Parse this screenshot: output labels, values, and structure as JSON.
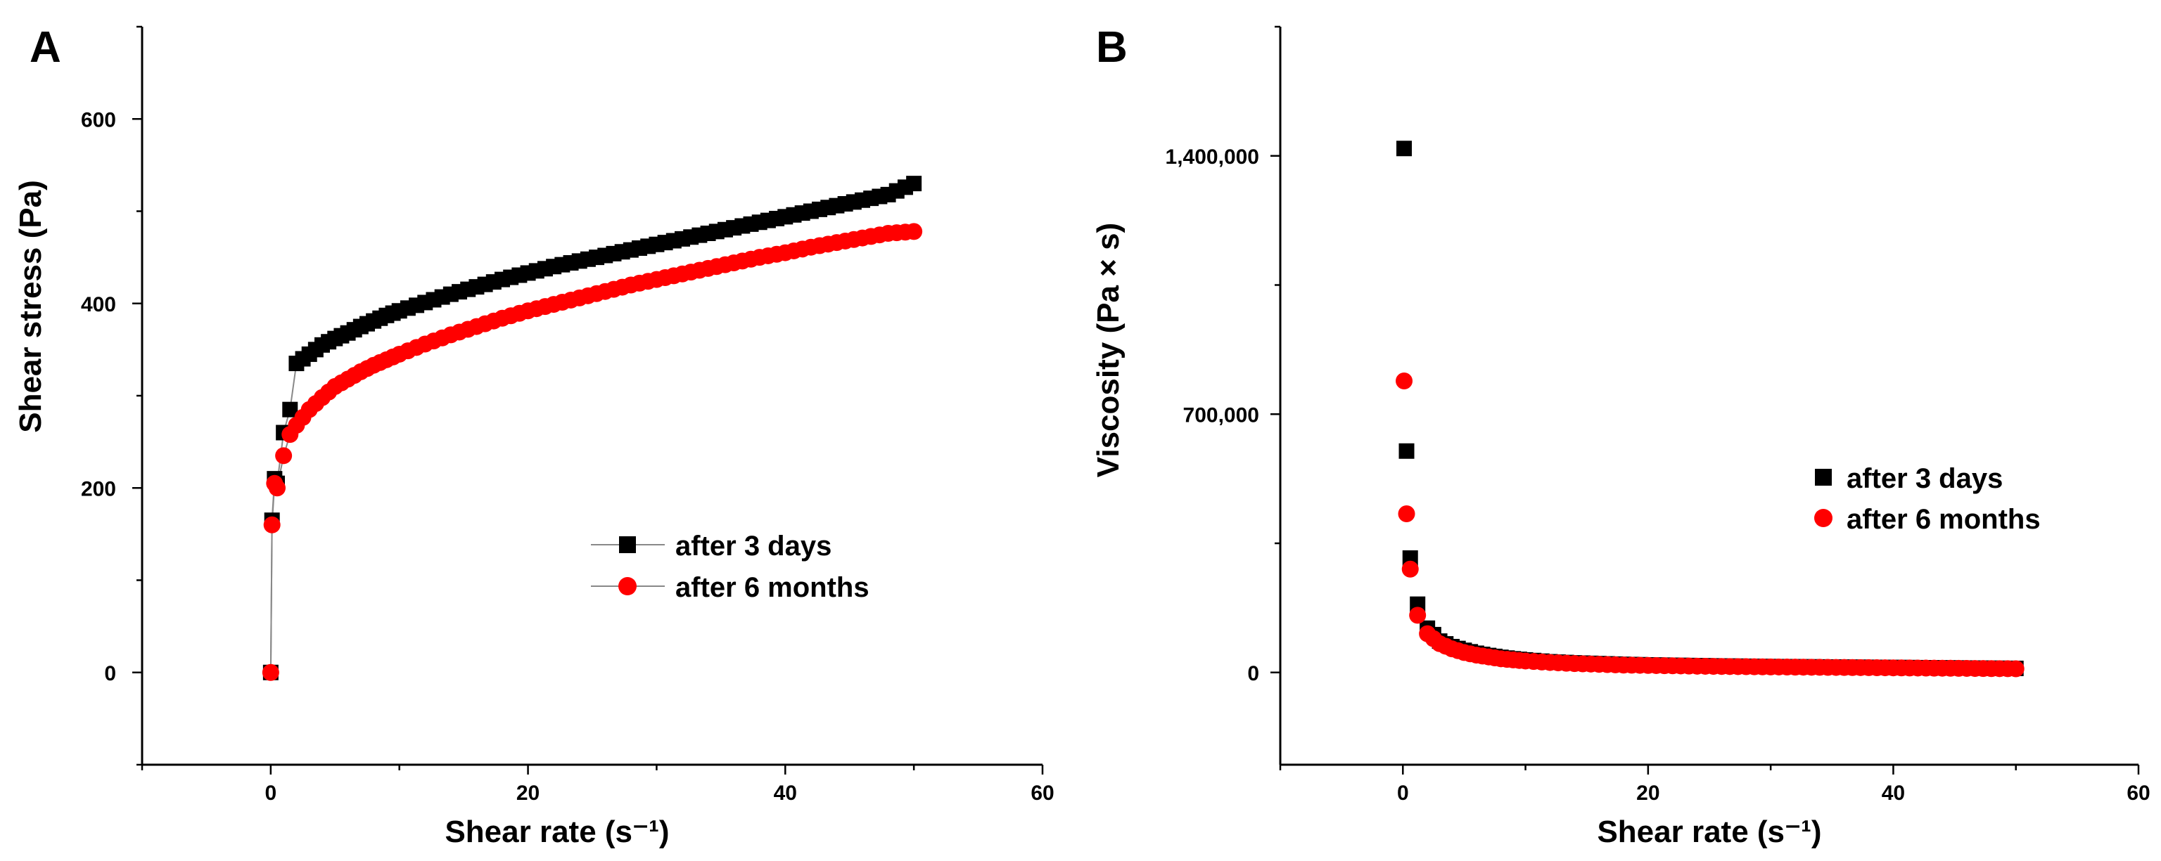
{
  "chart_data": [
    {
      "panel": "A",
      "type": "line",
      "title": "",
      "xlabel": "Shear rate (s⁻¹)",
      "ylabel": "Shear stress (Pa)",
      "xlim": [
        -10,
        60
      ],
      "ylim": [
        -100,
        700
      ],
      "xticks": [
        0,
        20,
        40,
        60
      ],
      "yticks": [
        0,
        200,
        400,
        600
      ],
      "xtick_labels": [
        "0",
        "20",
        "40",
        "60"
      ],
      "ytick_labels": [
        "0",
        "200",
        "400",
        "600"
      ],
      "legend_position": "center-right",
      "series": [
        {
          "name": "after 3 days",
          "marker": "square",
          "color": "#000000",
          "line_color": "#888888",
          "x": [
            0,
            0.1,
            0.3,
            0.5,
            1,
            1.5,
            2,
            3,
            4,
            5,
            6,
            7,
            8,
            9,
            10,
            12,
            14,
            16,
            18,
            20,
            22,
            24,
            26,
            28,
            30,
            32,
            34,
            36,
            38,
            40,
            42,
            44,
            46,
            48,
            50
          ],
          "y": [
            0,
            165,
            210,
            205,
            260,
            285,
            335,
            345,
            355,
            362,
            368,
            375,
            381,
            387,
            392,
            401,
            410,
            418,
            426,
            433,
            440,
            446,
            452,
            458,
            464,
            470,
            476,
            482,
            488,
            494,
            500,
            506,
            512,
            518,
            530
          ]
        },
        {
          "name": "after 6 months",
          "marker": "circle",
          "color": "#ff0000",
          "line_color": "#888888",
          "x": [
            0,
            0.1,
            0.3,
            0.5,
            1,
            1.5,
            2,
            3,
            4,
            5,
            6,
            7,
            8,
            9,
            10,
            12,
            14,
            16,
            18,
            20,
            22,
            24,
            26,
            28,
            30,
            32,
            34,
            36,
            38,
            40,
            42,
            44,
            46,
            48,
            50
          ],
          "y": [
            0,
            160,
            205,
            200,
            235,
            258,
            268,
            285,
            298,
            310,
            318,
            326,
            333,
            339,
            345,
            356,
            366,
            375,
            384,
            392,
            399,
            406,
            413,
            420,
            426,
            432,
            438,
            444,
            450,
            455,
            461,
            466,
            471,
            476,
            478
          ]
        }
      ]
    },
    {
      "panel": "B",
      "type": "scatter",
      "title": "",
      "xlabel": "Shear rate (s⁻¹)",
      "ylabel": "Viscosity (Pa × s)",
      "xlim": [
        -10,
        60
      ],
      "ylim": [
        -250000,
        1750000
      ],
      "xticks": [
        0,
        20,
        40,
        60
      ],
      "yticks": [
        0,
        700000,
        1400000
      ],
      "xtick_labels": [
        "0",
        "20",
        "40",
        "60"
      ],
      "ytick_labels": [
        "0",
        "700,000",
        "1,400,000"
      ],
      "legend_position": "center-right",
      "series": [
        {
          "name": "after 3 days",
          "marker": "square",
          "color": "#000000",
          "x": [
            0.1,
            0.3,
            0.6,
            1.2,
            2,
            3,
            4,
            5,
            6,
            7,
            8,
            9,
            10,
            12,
            14,
            16,
            18,
            20,
            22,
            24,
            26,
            28,
            30,
            32,
            34,
            36,
            38,
            40,
            42,
            44,
            46,
            48,
            50
          ],
          "y": [
            1420000,
            600000,
            310000,
            185000,
            120000,
            85000,
            70000,
            60000,
            52000,
            46000,
            41000,
            37000,
            34000,
            29000,
            26000,
            24000,
            22000,
            20500,
            19500,
            18500,
            17500,
            16800,
            16000,
            15500,
            15000,
            14500,
            14000,
            13500,
            13000,
            12500,
            12000,
            11500,
            11000
          ]
        },
        {
          "name": "after 6 months",
          "marker": "circle",
          "color": "#ff0000",
          "x": [
            0.1,
            0.3,
            0.6,
            1.2,
            2,
            3,
            4,
            5,
            6,
            7,
            8,
            9,
            10,
            12,
            14,
            16,
            18,
            20,
            22,
            24,
            26,
            28,
            30,
            32,
            34,
            36,
            38,
            40,
            42,
            44,
            46,
            48,
            50
          ],
          "y": [
            790000,
            430000,
            280000,
            155000,
            105000,
            78000,
            64000,
            54000,
            47000,
            42000,
            37000,
            34000,
            31000,
            27000,
            24000,
            22000,
            20000,
            19000,
            18000,
            17000,
            16300,
            15600,
            15000,
            14500,
            14000,
            13500,
            13000,
            12500,
            12000,
            11500,
            11000,
            10500,
            10000
          ]
        }
      ]
    }
  ]
}
